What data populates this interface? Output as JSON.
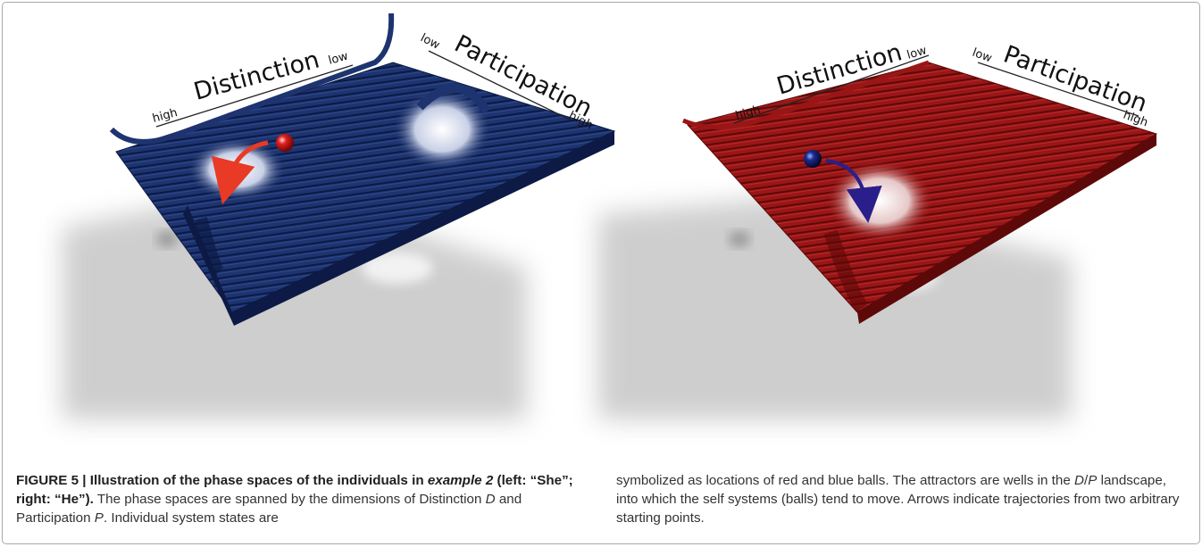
{
  "figure": {
    "number": "FIGURE 5",
    "separator": " | ",
    "title_part1": "Illustration of the phase spaces of the individuals in ",
    "title_italic": "example 2",
    "title_part2": " (left: “She”; right: “He”).",
    "caption_left": {
      "t1": " The phase spaces are spanned by the dimensions of Distinction ",
      "var_d": "D",
      "t2": " and Participation ",
      "var_p": "P",
      "t3": ". Individual system states are"
    },
    "caption_right": {
      "t1": "symbolized as locations of red and blue balls. The attractors are wells in the ",
      "var_d": "D",
      "slash": "/",
      "var_p": "P",
      "t2": " landscape, into which the self systems (balls) tend to move. Arrows indicate trajectories from two arbitrary starting points."
    }
  },
  "panels": {
    "left": {
      "surface_color": "#1a2f66",
      "ball_color": "#d41818",
      "arrow_color": "#e83a25",
      "distinction_label": "Distinction",
      "participation_label": "Participation",
      "high_d": "high",
      "low_d": "low",
      "low_p": "low",
      "high_p": "high"
    },
    "right": {
      "surface_color": "#8e1414",
      "ball_color": "#101a5a",
      "arrow_color": "#2a1f8a",
      "distinction_label": "Distinction",
      "participation_label": "Participation",
      "high_d": "high",
      "low_d": "low",
      "low_p": "low",
      "high_p": "high"
    }
  }
}
